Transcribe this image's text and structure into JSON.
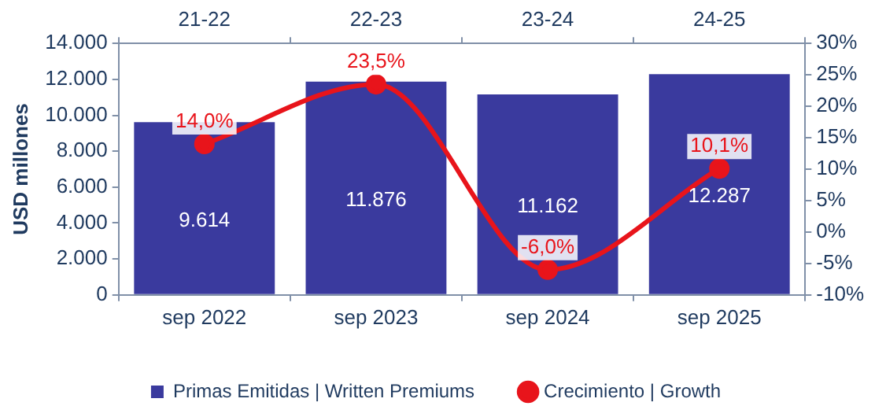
{
  "chart_data": {
    "type": "bar",
    "categories": [
      "sep 2022",
      "sep 2023",
      "sep 2024",
      "sep 2025"
    ],
    "ylabel": "USD millones",
    "series": [
      {
        "name": "Primas Emitidas | Written Premiums",
        "color": "#3a3a9e",
        "values": [
          9614,
          11876,
          11162,
          12287
        ],
        "value_labels": [
          "9.614",
          "11.876",
          "11.162",
          "12.287"
        ]
      },
      {
        "name": "Crecimiento | Growth",
        "type": "line",
        "axis": "y2",
        "color": "#e8141b",
        "values": [
          14.0,
          23.5,
          -6.0,
          10.1
        ],
        "value_labels": [
          "14,0%",
          "23,5%",
          "-6,0%",
          "10,1%"
        ]
      }
    ],
    "ylim": [
      0,
      14000
    ],
    "yticks": [
      0,
      {
        "value": 2000,
        "label": "2.000"
      },
      {
        "value": 4000,
        "label": "4.000"
      },
      {
        "value": 6000,
        "label": "6.000"
      },
      {
        "value": 8000,
        "label": "8.000"
      },
      {
        "value": 10000,
        "label": "10.000"
      },
      {
        "value": 12000,
        "label": "12.000"
      },
      {
        "value": 14000,
        "label": "14.000"
      }
    ],
    "y2lim": [
      -10,
      30
    ],
    "y2ticks": [
      {
        "value": -10,
        "label": "-10%"
      },
      {
        "value": -5,
        "label": "-5%"
      },
      {
        "value": 0,
        "label": "0%"
      },
      {
        "value": 5,
        "label": "5%"
      },
      {
        "value": 10,
        "label": "10%"
      },
      {
        "value": 15,
        "label": "15%"
      },
      {
        "value": 20,
        "label": "20%"
      },
      {
        "value": 25,
        "label": "25%"
      },
      {
        "value": 30,
        "label": "30%"
      }
    ],
    "annotations": [
      "21-22",
      "22-23",
      "23-24",
      "24-25"
    ],
    "legend": "bottom",
    "grid": false,
    "marker": "circle",
    "line_style": "solid"
  }
}
